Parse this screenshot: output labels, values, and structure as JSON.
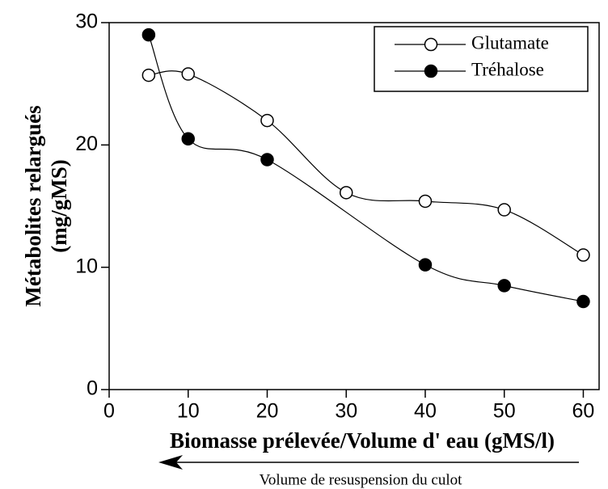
{
  "chart_data": {
    "type": "line",
    "x_label": "Biomasse prélevée/Volume d' eau (gMS/l)",
    "y_label": [
      "Métabolites relargués",
      "(mg/gMS)"
    ],
    "annotation": "Volume de resuspension du culot",
    "xlim": [
      0,
      62
    ],
    "xticks": [
      0,
      10,
      20,
      30,
      40,
      50,
      60
    ],
    "ylim": [
      0,
      30
    ],
    "yticks": [
      0,
      10,
      20,
      30
    ],
    "legend": "upper right",
    "series": [
      {
        "name": "Glutamate",
        "color": "#000",
        "marker": "open",
        "x": [
          5,
          10,
          20,
          30,
          40,
          50,
          60
        ],
        "values": [
          25.7,
          25.8,
          22,
          16.1,
          15.4,
          14.7,
          11
        ]
      },
      {
        "name": "Tréhalose",
        "color": "#000",
        "marker": "filled",
        "x": [
          5,
          10,
          20,
          40,
          50,
          60
        ],
        "values": [
          29,
          20.5,
          18.8,
          10.2,
          8.5,
          7.2
        ]
      }
    ]
  }
}
